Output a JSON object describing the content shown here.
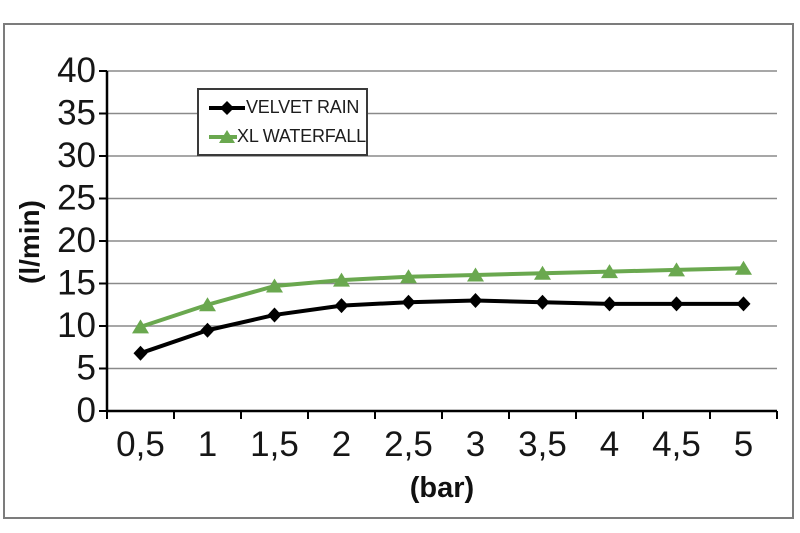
{
  "chart_data": {
    "type": "line",
    "title": "",
    "xlabel": "(bar)",
    "ylabel": "(l/min)",
    "x_tick_labels": [
      "0,5",
      "1",
      "1,5",
      "2",
      "2,5",
      "3",
      "3,5",
      "4",
      "4,5",
      "5"
    ],
    "x_values": [
      0.5,
      1,
      1.5,
      2,
      2.5,
      3,
      3.5,
      4,
      4.5,
      5
    ],
    "y_ticks": [
      0,
      5,
      10,
      15,
      20,
      25,
      30,
      35,
      40
    ],
    "ylim": [
      0,
      40
    ],
    "grid": "horizontal",
    "legend_position": "inside-top-center",
    "series": [
      {
        "name": "VELVET RAIN",
        "color": "#000000",
        "marker": "diamond",
        "values": [
          6.8,
          9.5,
          11.3,
          12.4,
          12.8,
          13.0,
          12.8,
          12.6,
          12.6,
          12.6
        ]
      },
      {
        "name": "XL WATERFALL",
        "color": "#6aa84f",
        "marker": "triangle-up",
        "values": [
          9.9,
          12.5,
          14.7,
          15.4,
          15.8,
          16.0,
          16.2,
          16.4,
          16.6,
          16.8
        ]
      }
    ]
  },
  "colors": {
    "background": "#ffffff",
    "frame_border": "#7c7c7c",
    "gridline": "#8a8a8a",
    "axis": "#000000",
    "legend_border": "#3a3a3a",
    "tick_label": "#161616"
  }
}
